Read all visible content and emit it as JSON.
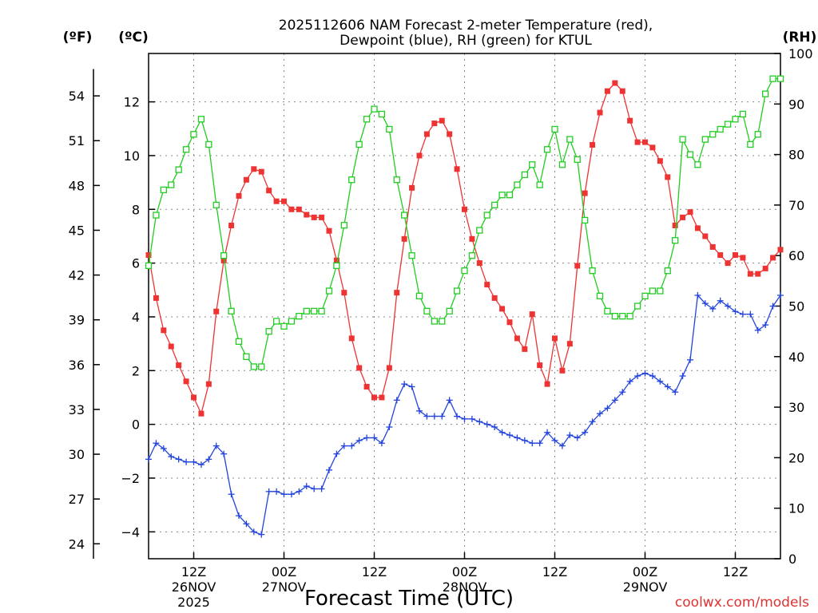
{
  "chart_data": {
    "type": "line",
    "title": "2025112606 NAM Forecast 2-meter Temperature (red),",
    "subtitle": "Dewpoint (blue), RH (green) for KTUL",
    "xlabel": "Forecast Time (UTC)",
    "credit": "coolwx.com/models",
    "x_unit": "forecast hour",
    "x_range": [
      0,
      84
    ],
    "x_ticks": [
      {
        "x": 6,
        "labels": [
          "12Z",
          "26NOV",
          "2025"
        ]
      },
      {
        "x": 18,
        "labels": [
          "00Z",
          "27NOV"
        ]
      },
      {
        "x": 30,
        "labels": [
          "12Z"
        ]
      },
      {
        "x": 42,
        "labels": [
          "00Z",
          "28NOV"
        ]
      },
      {
        "x": 54,
        "labels": [
          "12Z"
        ]
      },
      {
        "x": 66,
        "labels": [
          "00Z",
          "29NOV"
        ]
      },
      {
        "x": 78,
        "labels": [
          "12Z"
        ]
      }
    ],
    "axes": {
      "left_f": {
        "unit_label": "(ºF)",
        "ticks": [
          "24",
          "27",
          "30",
          "33",
          "36",
          "39",
          "42",
          "45",
          "48",
          "51",
          "54"
        ]
      },
      "left_c": {
        "unit_label": "(ºC)",
        "range": [
          -5,
          13.8
        ],
        "ticks": [
          "-4",
          "-2",
          "0",
          "2",
          "4",
          "6",
          "8",
          "10",
          "12"
        ]
      },
      "right_rh": {
        "unit_label": "(RH)",
        "range": [
          0,
          100
        ],
        "ticks": [
          "0",
          "10",
          "20",
          "30",
          "40",
          "50",
          "60",
          "70",
          "80",
          "90",
          "100"
        ]
      }
    },
    "grid": true,
    "series": [
      {
        "name": "Temperature",
        "axis": "left_c",
        "color": "#ee3333",
        "marker": "filled-square",
        "points": [
          [
            0,
            6.3
          ],
          [
            1,
            4.7
          ],
          [
            2,
            3.5
          ],
          [
            3,
            2.9
          ],
          [
            4,
            2.2
          ],
          [
            5,
            1.6
          ],
          [
            6,
            1.0
          ],
          [
            7,
            0.4
          ],
          [
            8,
            1.5
          ],
          [
            9,
            4.2
          ],
          [
            10,
            6.1
          ],
          [
            11,
            7.4
          ],
          [
            12,
            8.5
          ],
          [
            13,
            9.1
          ],
          [
            14,
            9.5
          ],
          [
            15,
            9.4
          ],
          [
            16,
            8.7
          ],
          [
            17,
            8.3
          ],
          [
            18,
            8.3
          ],
          [
            19,
            8.0
          ],
          [
            20,
            8.0
          ],
          [
            21,
            7.8
          ],
          [
            22,
            7.7
          ],
          [
            23,
            7.7
          ],
          [
            24,
            7.2
          ],
          [
            25,
            6.1
          ],
          [
            26,
            4.9
          ],
          [
            27,
            3.2
          ],
          [
            28,
            2.1
          ],
          [
            29,
            1.4
          ],
          [
            30,
            1.0
          ],
          [
            31,
            1.0
          ],
          [
            32,
            2.1
          ],
          [
            33,
            4.9
          ],
          [
            34,
            6.9
          ],
          [
            35,
            8.8
          ],
          [
            36,
            10.0
          ],
          [
            37,
            10.8
          ],
          [
            38,
            11.2
          ],
          [
            39,
            11.3
          ],
          [
            40,
            10.8
          ],
          [
            41,
            9.5
          ],
          [
            42,
            8.0
          ],
          [
            43,
            6.9
          ],
          [
            44,
            6.0
          ],
          [
            45,
            5.2
          ],
          [
            46,
            4.7
          ],
          [
            47,
            4.3
          ],
          [
            48,
            3.8
          ],
          [
            49,
            3.2
          ],
          [
            50,
            2.8
          ],
          [
            51,
            4.1
          ],
          [
            52,
            2.2
          ],
          [
            53,
            1.5
          ],
          [
            54,
            3.2
          ],
          [
            55,
            2.0
          ],
          [
            56,
            3.0
          ],
          [
            57,
            5.9
          ],
          [
            58,
            8.6
          ],
          [
            59,
            10.4
          ],
          [
            60,
            11.6
          ],
          [
            61,
            12.4
          ],
          [
            62,
            12.7
          ],
          [
            63,
            12.4
          ],
          [
            64,
            11.3
          ],
          [
            65,
            10.5
          ],
          [
            66,
            10.5
          ],
          [
            67,
            10.3
          ],
          [
            68,
            9.8
          ],
          [
            69,
            9.2
          ],
          [
            70,
            7.4
          ],
          [
            71,
            7.7
          ],
          [
            72,
            7.9
          ],
          [
            73,
            7.3
          ],
          [
            74,
            7.0
          ],
          [
            75,
            6.6
          ],
          [
            76,
            6.3
          ],
          [
            77,
            6.0
          ],
          [
            78,
            6.3
          ],
          [
            79,
            6.2
          ],
          [
            80,
            5.6
          ],
          [
            81,
            5.6
          ],
          [
            82,
            5.8
          ],
          [
            83,
            6.2
          ],
          [
            84,
            6.5
          ]
        ]
      },
      {
        "name": "Dewpoint",
        "axis": "left_c",
        "color": "#2244dd",
        "marker": "plus",
        "points": [
          [
            0,
            -1.3
          ],
          [
            1,
            -0.7
          ],
          [
            2,
            -0.9
          ],
          [
            3,
            -1.2
          ],
          [
            4,
            -1.3
          ],
          [
            5,
            -1.4
          ],
          [
            6,
            -1.4
          ],
          [
            7,
            -1.5
          ],
          [
            8,
            -1.3
          ],
          [
            9,
            -0.8
          ],
          [
            10,
            -1.1
          ],
          [
            11,
            -2.6
          ],
          [
            12,
            -3.4
          ],
          [
            13,
            -3.7
          ],
          [
            14,
            -4.0
          ],
          [
            15,
            -4.1
          ],
          [
            16,
            -2.5
          ],
          [
            17,
            -2.5
          ],
          [
            18,
            -2.6
          ],
          [
            19,
            -2.6
          ],
          [
            20,
            -2.5
          ],
          [
            21,
            -2.3
          ],
          [
            22,
            -2.4
          ],
          [
            23,
            -2.4
          ],
          [
            24,
            -1.7
          ],
          [
            25,
            -1.1
          ],
          [
            26,
            -0.8
          ],
          [
            27,
            -0.8
          ],
          [
            28,
            -0.6
          ],
          [
            29,
            -0.5
          ],
          [
            30,
            -0.5
          ],
          [
            31,
            -0.7
          ],
          [
            32,
            -0.1
          ],
          [
            33,
            0.9
          ],
          [
            34,
            1.5
          ],
          [
            35,
            1.4
          ],
          [
            36,
            0.5
          ],
          [
            37,
            0.3
          ],
          [
            38,
            0.3
          ],
          [
            39,
            0.3
          ],
          [
            40,
            0.9
          ],
          [
            41,
            0.3
          ],
          [
            42,
            0.2
          ],
          [
            43,
            0.2
          ],
          [
            44,
            0.1
          ],
          [
            45,
            0.0
          ],
          [
            46,
            -0.1
          ],
          [
            47,
            -0.3
          ],
          [
            48,
            -0.4
          ],
          [
            49,
            -0.5
          ],
          [
            50,
            -0.6
          ],
          [
            51,
            -0.7
          ],
          [
            52,
            -0.7
          ],
          [
            53,
            -0.3
          ],
          [
            54,
            -0.6
          ],
          [
            55,
            -0.8
          ],
          [
            56,
            -0.4
          ],
          [
            57,
            -0.5
          ],
          [
            58,
            -0.3
          ],
          [
            59,
            0.1
          ],
          [
            60,
            0.4
          ],
          [
            61,
            0.6
          ],
          [
            62,
            0.9
          ],
          [
            63,
            1.2
          ],
          [
            64,
            1.6
          ],
          [
            65,
            1.8
          ],
          [
            66,
            1.9
          ],
          [
            67,
            1.8
          ],
          [
            68,
            1.6
          ],
          [
            69,
            1.4
          ],
          [
            70,
            1.2
          ],
          [
            71,
            1.8
          ],
          [
            72,
            2.4
          ],
          [
            73,
            4.8
          ],
          [
            74,
            4.5
          ],
          [
            75,
            4.3
          ],
          [
            76,
            4.6
          ],
          [
            77,
            4.4
          ],
          [
            78,
            4.2
          ],
          [
            79,
            4.1
          ],
          [
            80,
            4.1
          ],
          [
            81,
            3.5
          ],
          [
            82,
            3.7
          ],
          [
            83,
            4.4
          ],
          [
            84,
            4.8
          ]
        ]
      },
      {
        "name": "RH",
        "axis": "right_rh",
        "color": "#22cc22",
        "marker": "open-square",
        "points": [
          [
            0,
            58
          ],
          [
            1,
            68
          ],
          [
            2,
            73
          ],
          [
            3,
            74
          ],
          [
            4,
            77
          ],
          [
            5,
            81
          ],
          [
            6,
            84
          ],
          [
            7,
            87
          ],
          [
            8,
            82
          ],
          [
            9,
            70
          ],
          [
            10,
            60
          ],
          [
            11,
            49
          ],
          [
            12,
            43
          ],
          [
            13,
            40
          ],
          [
            14,
            38
          ],
          [
            15,
            38
          ],
          [
            16,
            45
          ],
          [
            17,
            47
          ],
          [
            18,
            46
          ],
          [
            19,
            47
          ],
          [
            20,
            48
          ],
          [
            21,
            49
          ],
          [
            22,
            49
          ],
          [
            23,
            49
          ],
          [
            24,
            53
          ],
          [
            25,
            58
          ],
          [
            26,
            66
          ],
          [
            27,
            75
          ],
          [
            28,
            82
          ],
          [
            29,
            87
          ],
          [
            30,
            89
          ],
          [
            31,
            88
          ],
          [
            32,
            85
          ],
          [
            33,
            75
          ],
          [
            34,
            68
          ],
          [
            35,
            60
          ],
          [
            36,
            52
          ],
          [
            37,
            49
          ],
          [
            38,
            47
          ],
          [
            39,
            47
          ],
          [
            40,
            49
          ],
          [
            41,
            53
          ],
          [
            42,
            57
          ],
          [
            43,
            60
          ],
          [
            44,
            65
          ],
          [
            45,
            68
          ],
          [
            46,
            70
          ],
          [
            47,
            72
          ],
          [
            48,
            72
          ],
          [
            49,
            74
          ],
          [
            50,
            76
          ],
          [
            51,
            78
          ],
          [
            52,
            74
          ],
          [
            53,
            81
          ],
          [
            54,
            85
          ],
          [
            55,
            78
          ],
          [
            56,
            83
          ],
          [
            57,
            79
          ],
          [
            58,
            67
          ],
          [
            59,
            57
          ],
          [
            60,
            52
          ],
          [
            61,
            49
          ],
          [
            62,
            48
          ],
          [
            63,
            48
          ],
          [
            64,
            48
          ],
          [
            65,
            50
          ],
          [
            66,
            52
          ],
          [
            67,
            53
          ],
          [
            68,
            53
          ],
          [
            69,
            57
          ],
          [
            70,
            63
          ],
          [
            71,
            83
          ],
          [
            72,
            80
          ],
          [
            73,
            78
          ],
          [
            74,
            83
          ],
          [
            75,
            84
          ],
          [
            76,
            85
          ],
          [
            77,
            86
          ],
          [
            78,
            87
          ],
          [
            79,
            88
          ],
          [
            80,
            82
          ],
          [
            81,
            84
          ],
          [
            82,
            92
          ],
          [
            83,
            95
          ],
          [
            84,
            95
          ]
        ]
      }
    ]
  }
}
